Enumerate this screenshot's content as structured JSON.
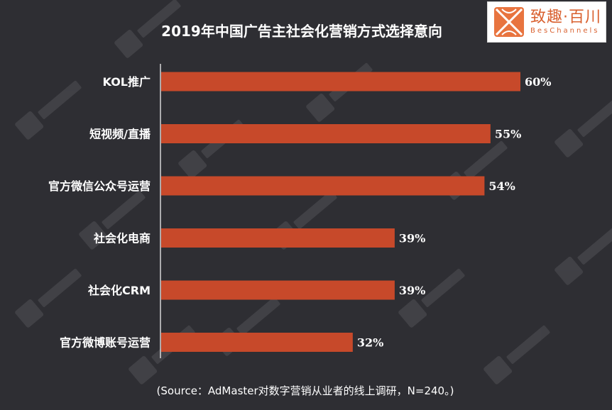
{
  "brand": {
    "name": "致趣·百川",
    "sub": "BesChannels"
  },
  "source": "(Source：AdMaster对数字营销从业者的线上调研，N=240。)",
  "colors": {
    "background": "#2e2e33",
    "bar": "#c7492a",
    "text": "#ffffff",
    "axis": "#ffffff"
  },
  "chart_data": {
    "type": "bar",
    "orientation": "horizontal",
    "title": "2019年中国广告主社会化营销方式选择意向",
    "categories": [
      "KOL推广",
      "短视频/直播",
      "官方微信公众号运营",
      "社会化电商",
      "社会化CRM",
      "官方微博账号运营"
    ],
    "values": [
      60,
      55,
      54,
      39,
      39,
      32
    ],
    "value_labels": [
      "60%",
      "55%",
      "54%",
      "39%",
      "39%",
      "32%"
    ],
    "xlim": [
      0,
      60
    ],
    "grid": false,
    "legend": "none"
  }
}
